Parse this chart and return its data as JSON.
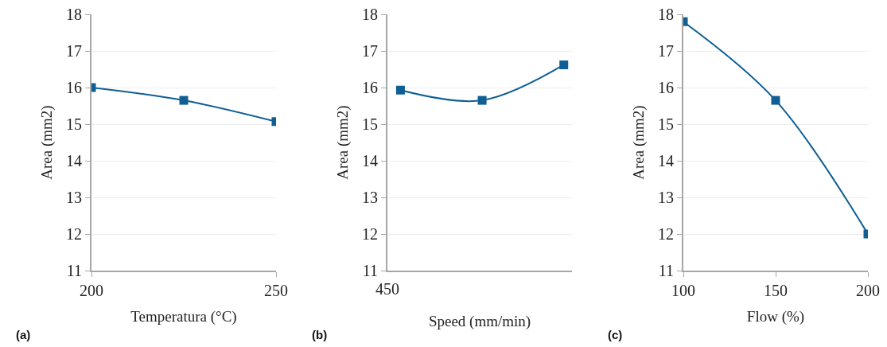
{
  "chart_data": [
    {
      "type": "line",
      "xlabel": "Temperatura (°C)",
      "ylabel": "Area (mm2)",
      "x": [
        200,
        225,
        250
      ],
      "values": [
        16.0,
        15.65,
        15.07
      ],
      "color": "#0f5f94",
      "xlim": [
        200,
        250
      ],
      "xticks": [
        200,
        250
      ],
      "ylim": [
        11,
        18
      ],
      "yticks": [
        11,
        12,
        13,
        14,
        15,
        16,
        17,
        18
      ],
      "grid": "y",
      "marker": "square",
      "line_style": "solid",
      "annotations": [
        "(a)"
      ]
    },
    {
      "type": "line",
      "xlabel": "Speed (mm/min)",
      "ylabel": "Area (mm2)",
      "categories": [
        null,
        null,
        null
      ],
      "values": [
        15.93,
        15.65,
        16.62
      ],
      "color": "#0f5f94",
      "ylim": [
        11,
        18
      ],
      "yticks": [
        11,
        12,
        13,
        14,
        15,
        16,
        17,
        18
      ],
      "grid": "y",
      "marker": "square",
      "line_style": "solid",
      "annotations": [
        "450",
        "(b)"
      ]
    },
    {
      "type": "line",
      "xlabel": "Flow (%)",
      "ylabel": "Area (mm2)",
      "x": [
        100,
        150,
        200
      ],
      "values": [
        17.8,
        15.65,
        12.0
      ],
      "color": "#0f5f94",
      "xlim": [
        100,
        200
      ],
      "xticks": [
        100,
        150,
        200
      ],
      "ylim": [
        11,
        18
      ],
      "yticks": [
        11,
        12,
        13,
        14,
        15,
        16,
        17,
        18
      ],
      "grid": "y",
      "marker": "square",
      "line_style": "solid",
      "annotations": [
        "(c)"
      ]
    }
  ]
}
